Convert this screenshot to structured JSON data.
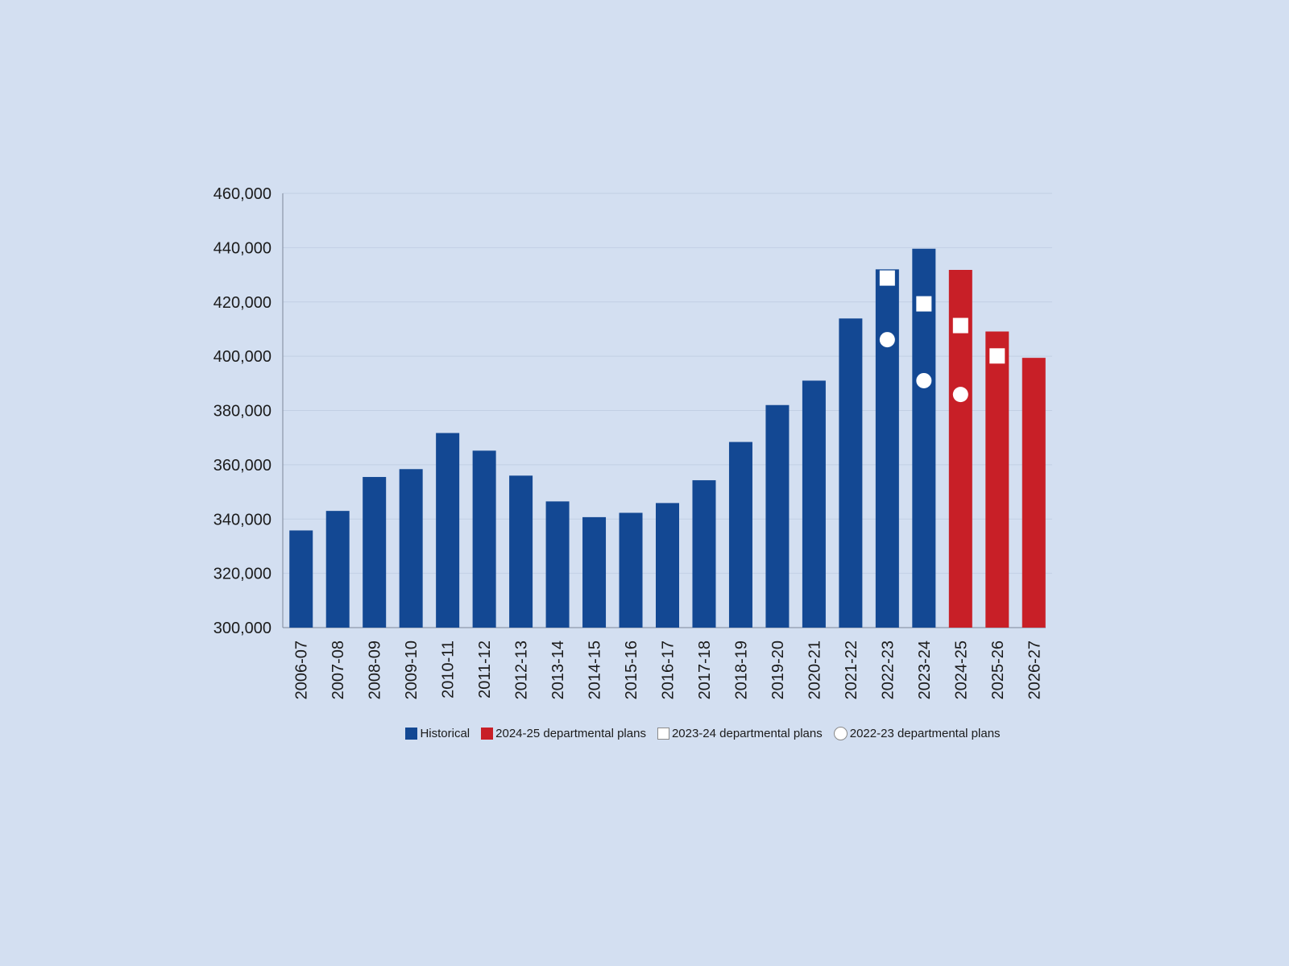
{
  "chart_data": {
    "type": "bar",
    "title": "",
    "xlabel": "",
    "ylabel": "",
    "ylim": [
      300000,
      460000
    ],
    "yticks": [
      300000,
      320000,
      340000,
      360000,
      380000,
      400000,
      420000,
      440000,
      460000
    ],
    "ytick_labels": [
      "300,000",
      "320,000",
      "340,000",
      "360,000",
      "380,000",
      "400,000",
      "420,000",
      "440,000",
      "460,000"
    ],
    "grid": true,
    "legend_position": "bottom",
    "categories": [
      "2006-07",
      "2007-08",
      "2008-09",
      "2009-10",
      "2010-11",
      "2011-12",
      "2012-13",
      "2013-14",
      "2014-15",
      "2015-16",
      "2016-17",
      "2017-18",
      "2018-19",
      "2019-20",
      "2020-21",
      "2021-22",
      "2022-23",
      "2023-24",
      "2024-25",
      "2025-26",
      "2026-27"
    ],
    "series": [
      {
        "name": "Historical",
        "kind": "bar",
        "color": "#134893",
        "values": [
          335800,
          343000,
          355500,
          358400,
          371700,
          365200,
          356000,
          346500,
          340700,
          342300,
          345900,
          354300,
          368400,
          382000,
          391000,
          413900,
          432000,
          439600,
          null,
          null,
          null
        ]
      },
      {
        "name": "2024-25 departmental plans",
        "kind": "bar",
        "color": "#c81f27",
        "values": [
          null,
          null,
          null,
          null,
          null,
          null,
          null,
          null,
          null,
          null,
          null,
          null,
          null,
          null,
          null,
          null,
          null,
          null,
          431800,
          409100,
          399400
        ]
      },
      {
        "name": "2023-24 departmental plans",
        "kind": "marker",
        "marker": "square",
        "color": "#ffffff",
        "values": [
          null,
          null,
          null,
          null,
          null,
          null,
          null,
          null,
          null,
          null,
          null,
          null,
          null,
          null,
          null,
          null,
          428800,
          419300,
          411300,
          400100,
          null
        ]
      },
      {
        "name": "2022-23 departmental plans",
        "kind": "marker",
        "marker": "circle",
        "color": "#ffffff",
        "values": [
          null,
          null,
          null,
          null,
          null,
          null,
          null,
          null,
          null,
          null,
          null,
          null,
          null,
          null,
          null,
          null,
          406100,
          391000,
          385900,
          null,
          null
        ]
      }
    ]
  }
}
